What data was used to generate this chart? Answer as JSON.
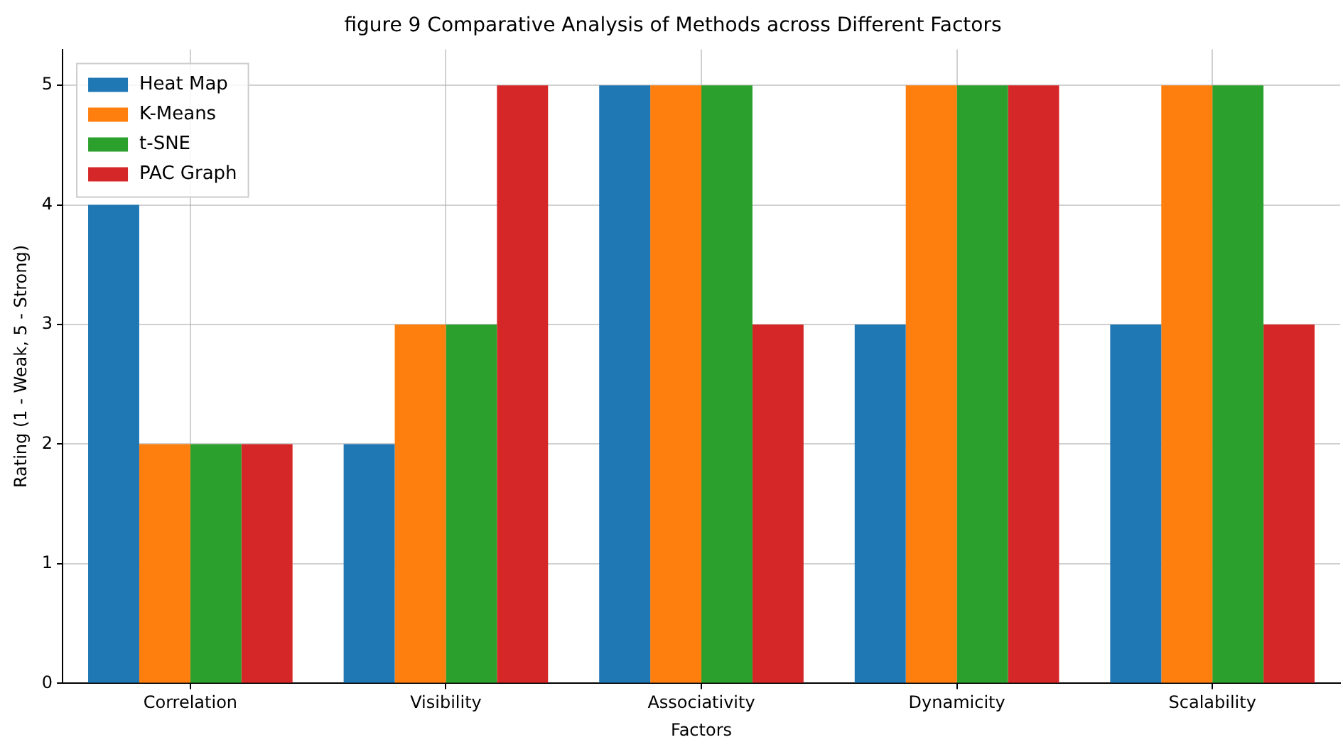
{
  "chart_data": {
    "type": "bar",
    "title": "figure 9 Comparative Analysis of Methods across Different Factors",
    "xlabel": "Factors",
    "ylabel": "Rating (1 - Weak, 5 - Strong)",
    "categories": [
      "Correlation",
      "Visibility",
      "Associativity",
      "Dynamicity",
      "Scalability"
    ],
    "series": [
      {
        "name": "Heat Map",
        "color": "#1f77b4",
        "values": [
          4,
          2,
          5,
          3,
          3
        ]
      },
      {
        "name": "K-Means",
        "color": "#ff7f0e",
        "values": [
          2,
          3,
          5,
          5,
          5
        ]
      },
      {
        "name": "t-SNE",
        "color": "#2ca02c",
        "values": [
          2,
          3,
          5,
          5,
          5
        ]
      },
      {
        "name": "PAC Graph",
        "color": "#d62728",
        "values": [
          2,
          5,
          3,
          5,
          3
        ]
      }
    ],
    "ylim": [
      0,
      5.3
    ],
    "yticks": [
      0,
      1,
      2,
      3,
      4,
      5
    ],
    "grid": true,
    "legend": "top left"
  }
}
